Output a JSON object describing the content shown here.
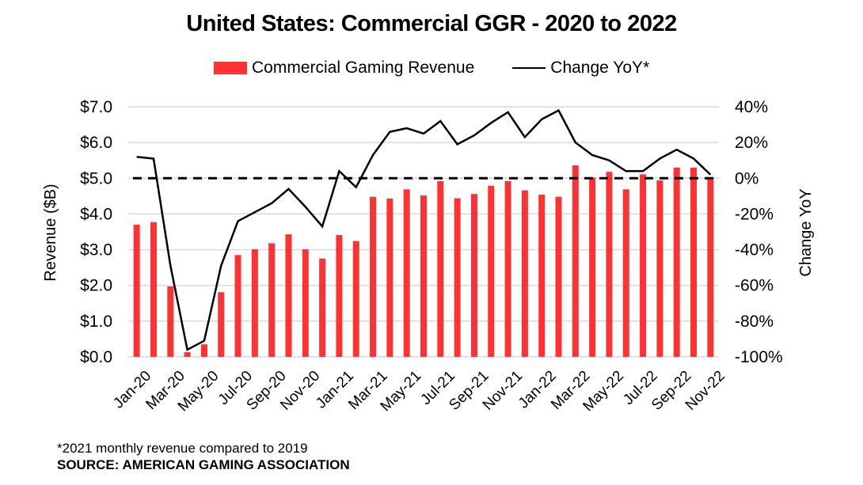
{
  "chart_data": {
    "type": "bar",
    "title": "United States: Commercial GGR - 2020 to 2022",
    "categories": [
      "Jan-20",
      "Feb-20",
      "Mar-20",
      "Apr-20",
      "May-20",
      "Jun-20",
      "Jul-20",
      "Aug-20",
      "Sep-20",
      "Oct-20",
      "Nov-20",
      "Dec-20",
      "Jan-21",
      "Feb-21",
      "Mar-21",
      "Apr-21",
      "May-21",
      "Jun-21",
      "Jul-21",
      "Aug-21",
      "Sep-21",
      "Oct-21",
      "Nov-21",
      "Dec-21",
      "Jan-22",
      "Feb-22",
      "Mar-22",
      "Apr-22",
      "May-22",
      "Jun-22",
      "Jul-22",
      "Aug-22",
      "Sep-22",
      "Oct-22",
      "Nov-22"
    ],
    "x_tick_labels": [
      "Jan-20",
      "Mar-20",
      "May-20",
      "Jul-20",
      "Sep-20",
      "Nov-20",
      "Jan-21",
      "Mar-21",
      "May-21",
      "Jul-21",
      "Sep-21",
      "Nov-21",
      "Jan-22",
      "Mar-22",
      "May-22",
      "Jul-22",
      "Sep-22",
      "Nov-22"
    ],
    "series": [
      {
        "name": "Commercial Gaming Revenue",
        "type": "bar",
        "axis": "left",
        "color": "#fe3135",
        "values": [
          3.7,
          3.77,
          1.97,
          0.13,
          0.35,
          1.81,
          2.85,
          3.01,
          3.18,
          3.43,
          3.01,
          2.75,
          3.41,
          3.24,
          4.48,
          4.43,
          4.69,
          4.52,
          4.92,
          4.44,
          4.56,
          4.79,
          4.92,
          4.66,
          4.54,
          4.48,
          5.36,
          5.02,
          5.18,
          4.69,
          5.11,
          4.94,
          5.3,
          5.3,
          5.03
        ]
      },
      {
        "name": "Change YoY*",
        "type": "line",
        "axis": "right",
        "color": "#000000",
        "values": [
          12,
          11,
          -49,
          -96,
          -91,
          -49,
          -24,
          -19,
          -14,
          -6,
          -16,
          -27,
          4,
          -5,
          13,
          26,
          28,
          25,
          32,
          19,
          24,
          31,
          37,
          23,
          33,
          38,
          20,
          13,
          10,
          4,
          4,
          11,
          16,
          11,
          2
        ]
      }
    ],
    "reference_line": {
      "axis": "right",
      "value": 0,
      "style": "dashed"
    },
    "ylabel": "Revenue ($B)",
    "y2label": "Change YoY",
    "ylim": [
      0,
      7
    ],
    "y2lim": [
      -100,
      40
    ],
    "y_ticks": [
      "$0.0",
      "$1.0",
      "$2.0",
      "$3.0",
      "$4.0",
      "$5.0",
      "$6.0",
      "$7.0"
    ],
    "y2_ticks": [
      "-100%",
      "-80%",
      "-60%",
      "-40%",
      "-20%",
      "0%",
      "20%",
      "40%"
    ],
    "grid": true,
    "legend_position": "top-center"
  },
  "legend": {
    "bar_label": "Commercial Gaming Revenue",
    "line_label": "Change YoY*"
  },
  "footnote": "*2021 monthly revenue compared to 2019",
  "source": "SOURCE: AMERICAN GAMING ASSOCIATION"
}
